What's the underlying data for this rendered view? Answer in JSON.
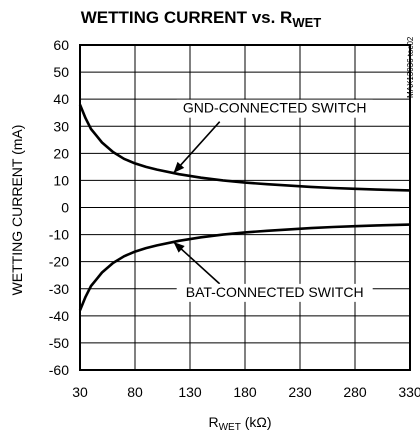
{
  "chart_data": {
    "type": "line",
    "title": "WETTING CURRENT vs. R",
    "title_sub": "WET",
    "xlabel": "R",
    "xlabel_sub": "WET",
    "xlabel_unit": " (kΩ)",
    "ylabel": "WETTING CURRENT (mA)",
    "xlim": [
      30,
      330
    ],
    "ylim": [
      -60,
      60
    ],
    "x_ticks": [
      "30",
      "80",
      "130",
      "180",
      "230",
      "280",
      "330"
    ],
    "y_ticks": [
      "60",
      "50",
      "40",
      "30",
      "20",
      "10",
      "0",
      "-10",
      "-20",
      "-30",
      "-40",
      "-50",
      "-60"
    ],
    "grid": true,
    "series": [
      {
        "name": "GND-CONNECTED SWITCH",
        "x": [
          30,
          35,
          40,
          45,
          50,
          60,
          70,
          80,
          90,
          100,
          120,
          140,
          160,
          180,
          200,
          220,
          240,
          260,
          280,
          300,
          330
        ],
        "y": [
          38,
          33,
          29,
          26.5,
          24,
          20.5,
          18,
          16.3,
          15,
          14,
          12.3,
          11,
          10,
          9.2,
          8.6,
          8.1,
          7.6,
          7.2,
          6.9,
          6.6,
          6.3
        ]
      },
      {
        "name": "BAT-CONNECTED SWITCH",
        "x": [
          30,
          35,
          40,
          45,
          50,
          60,
          70,
          80,
          90,
          100,
          120,
          140,
          160,
          180,
          200,
          220,
          240,
          260,
          280,
          300,
          330
        ],
        "y": [
          -38,
          -33,
          -29,
          -26.5,
          -24,
          -20.5,
          -18,
          -16.3,
          -15,
          -14,
          -12.3,
          -11,
          -10,
          -9.2,
          -8.6,
          -8.1,
          -7.6,
          -7.2,
          -6.9,
          -6.6,
          -6.3
        ]
      }
    ],
    "annotations": [
      {
        "text": "GND-CONNECTED SWITCH",
        "series": 0,
        "point_x": 115,
        "label_x": 207,
        "label_y": 35
      },
      {
        "text": "BAT-CONNECTED SWITCH",
        "series": 1,
        "point_x": 115,
        "label_x": 207,
        "label_y": -33
      }
    ],
    "part_number": "MAX13036 toc02"
  }
}
